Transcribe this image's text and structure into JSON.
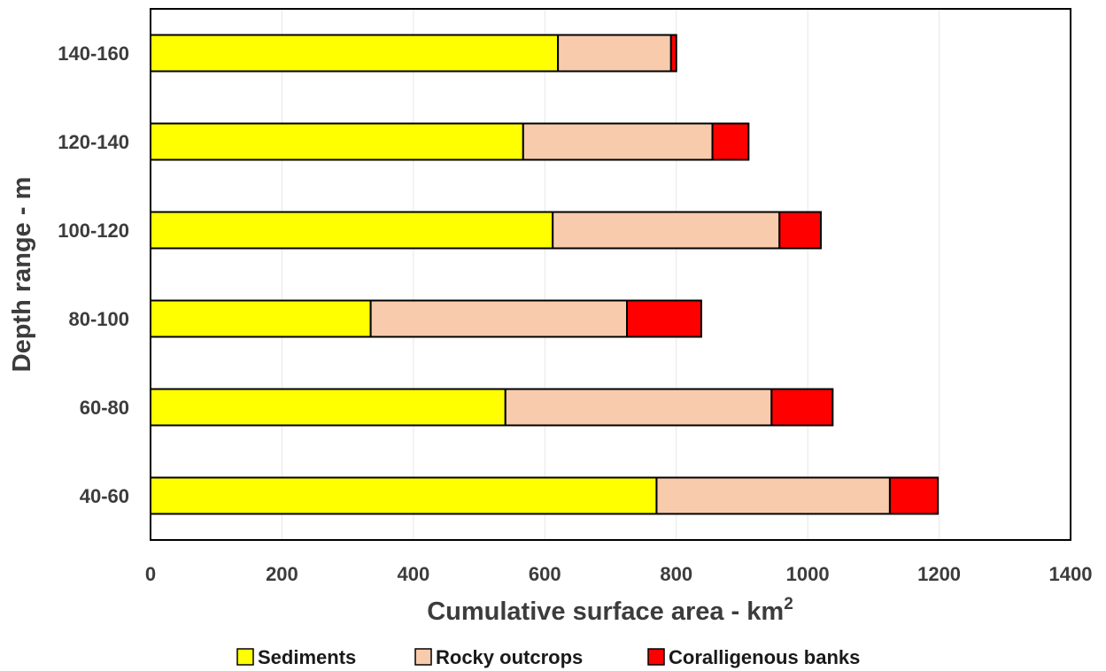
{
  "chart_data": {
    "type": "bar",
    "orientation": "horizontal",
    "stacked": true,
    "categories": [
      "40-60",
      "60-80",
      "80-100",
      "100-120",
      "120-140",
      "140-160"
    ],
    "series": [
      {
        "name": "Sediments",
        "values": [
          770,
          540,
          335,
          612,
          567,
          620
        ],
        "color": "#ffff00"
      },
      {
        "name": "Rocky outcrops",
        "values": [
          355,
          405,
          390,
          345,
          288,
          172
        ],
        "color": "#f8cbad"
      },
      {
        "name": "Coralligenous banks",
        "values": [
          73,
          93,
          113,
          63,
          55,
          8
        ],
        "color": "#ff0000"
      }
    ],
    "xlabel": "Cumulative surface area  - km",
    "xlabel_superscript": "2",
    "ylabel": "Depth range  - m",
    "xlim": [
      0,
      1400
    ],
    "xticks": [
      "0",
      "200",
      "400",
      "600",
      "800",
      "1000",
      "1200",
      "1400"
    ],
    "grid": "vertical",
    "legend_position": "bottom"
  }
}
